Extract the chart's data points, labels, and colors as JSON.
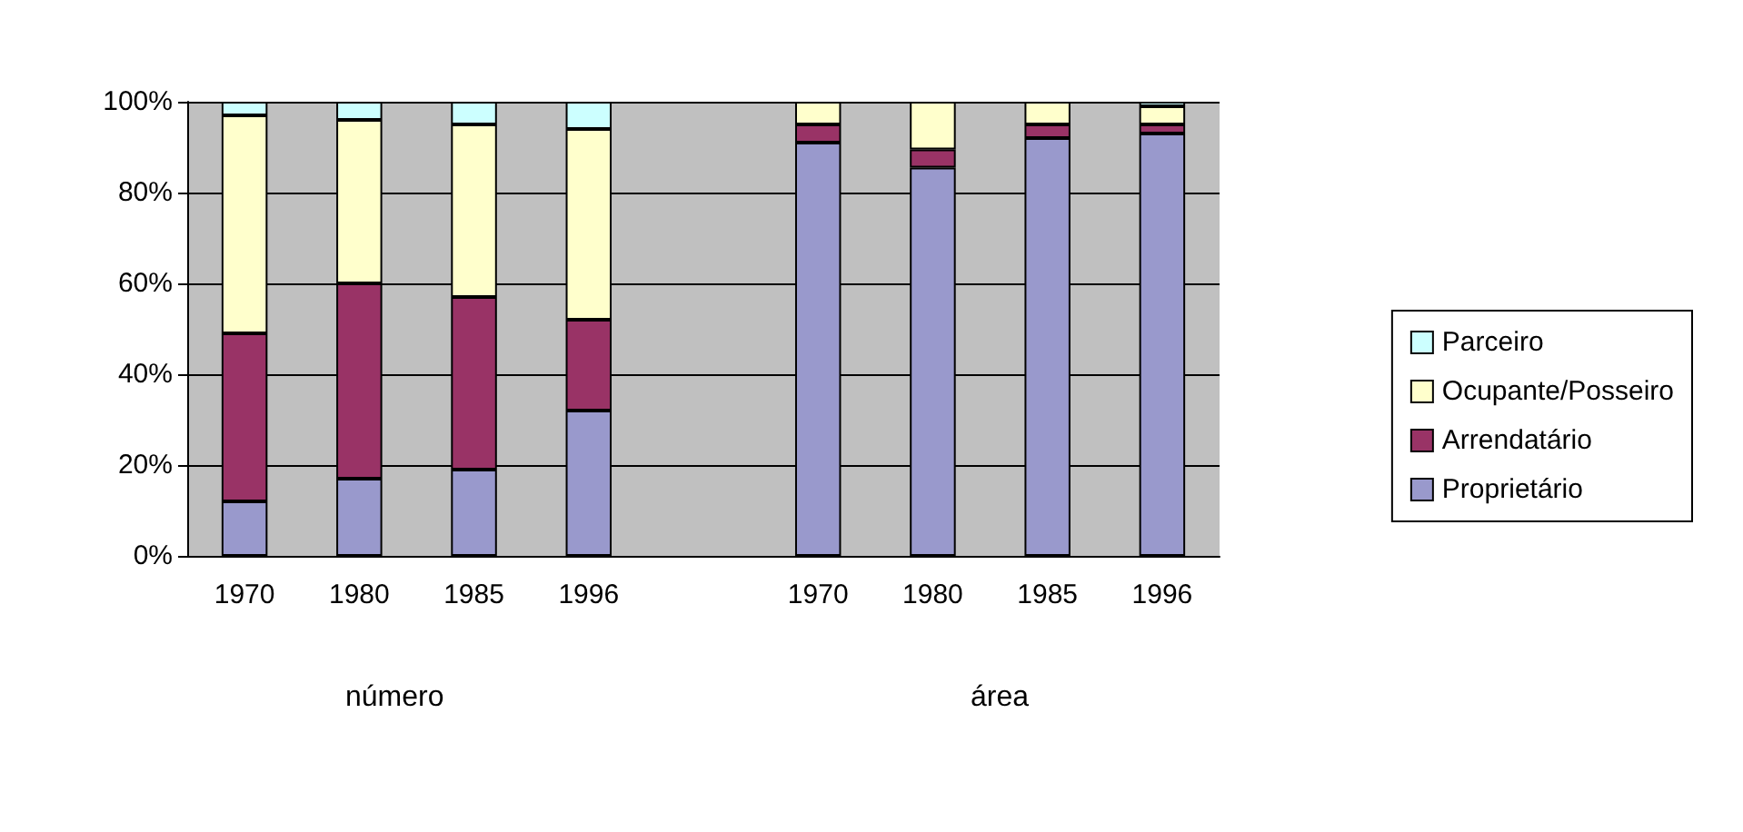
{
  "chart_data": {
    "type": "bar",
    "stacked": true,
    "categories": [
      "1970",
      "1980",
      "1985",
      "1996",
      null,
      "1970",
      "1980",
      "1985",
      "1996"
    ],
    "series": [
      {
        "name": "Proprietário",
        "color": "#9999cc",
        "values": [
          12,
          17,
          19,
          32,
          null,
          91,
          85.5,
          92,
          93
        ]
      },
      {
        "name": "Arrendatário",
        "color": "#993366",
        "values": [
          37,
          43,
          38,
          20,
          null,
          4,
          4,
          3,
          2
        ]
      },
      {
        "name": "Ocupante/Posseiro",
        "color": "#ffffcc",
        "values": [
          48,
          36,
          38,
          42,
          null,
          5,
          10.5,
          5,
          4
        ]
      },
      {
        "name": "Parceiro",
        "color": "#ccffff",
        "values": [
          3,
          4,
          5,
          6,
          null,
          0,
          0,
          0,
          1
        ]
      }
    ],
    "ylim": [
      0,
      100
    ],
    "yticks": [
      {
        "value": 0,
        "label": "0%"
      },
      {
        "value": 20,
        "label": "20%"
      },
      {
        "value": 40,
        "label": "40%"
      },
      {
        "value": 60,
        "label": "60%"
      },
      {
        "value": 80,
        "label": "80%"
      },
      {
        "value": 100,
        "label": "100%"
      }
    ],
    "grid": "y",
    "legend": "right",
    "annotations": [
      "número",
      "área"
    ]
  }
}
